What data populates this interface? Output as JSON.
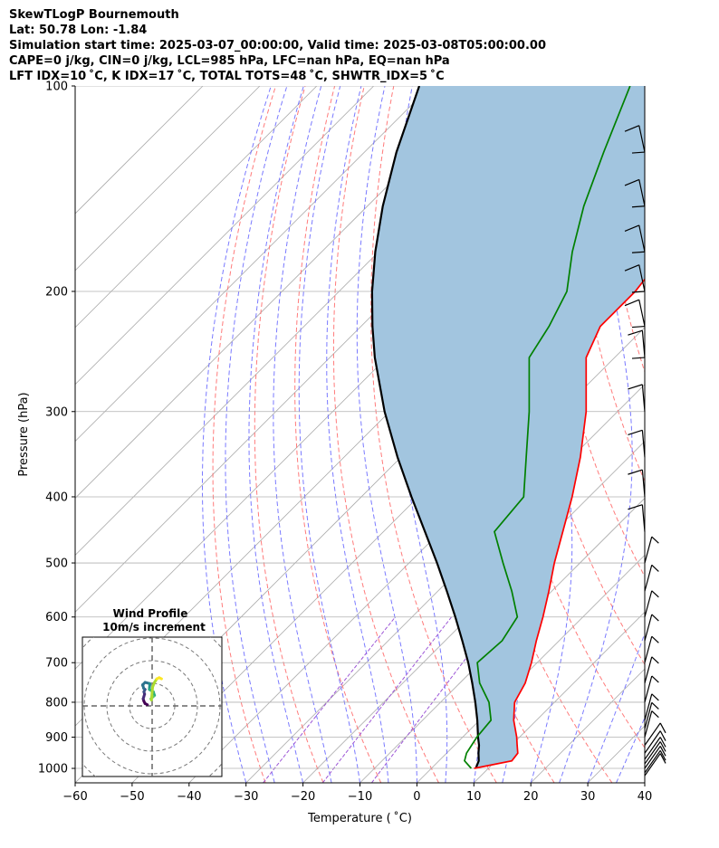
{
  "header": {
    "title": "SkewTLogP Bournemouth",
    "location": "Lat: 50.78   Lon: -1.84",
    "times": "Simulation start time: 2025-03-07_00:00:00, Valid time: 2025-03-08T05:00:00.00",
    "indices_1": "CAPE=0 j/kg, CIN=0 j/kg, LCL=985 hPa, LFC=nan hPa, EQ=nan hPa",
    "indices_2": "LFT IDX=10 ˚C, K IDX=17 ˚C, TOTAL TOTS=48 ˚C, SHWTR_IDX=5 ˚C"
  },
  "chart_data": {
    "type": "skew-t log-p",
    "xlabel": "Temperature ( ˚C)",
    "ylabel": "Pressure (hPa)",
    "xlim": [
      -60,
      40
    ],
    "ylim": [
      1050,
      100
    ],
    "x_ticks": [
      "−60",
      "−50",
      "−40",
      "−30",
      "−20",
      "−10",
      "0",
      "10",
      "20",
      "30",
      "40"
    ],
    "y_ticks": [
      "100",
      "200",
      "300",
      "400",
      "500",
      "600",
      "700",
      "800",
      "900",
      "1000"
    ],
    "pressure_levels_hpa": [
      1000,
      975,
      950,
      925,
      900,
      850,
      800,
      750,
      700,
      650,
      600,
      550,
      500,
      450,
      400,
      350,
      300,
      250,
      225,
      200,
      175,
      150,
      125,
      100
    ],
    "temperature_c": [
      7.5,
      12.8,
      12.5,
      11.0,
      9.5,
      6.0,
      3.0,
      1.5,
      -1.0,
      -4.0,
      -7.0,
      -10.5,
      -14.5,
      -18.5,
      -23.0,
      -28.5,
      -35.5,
      -45.0,
      -48.0,
      -48.0,
      -49.5,
      -53.5,
      -59.0,
      -67.0
    ],
    "dewpoint_c": [
      7.0,
      4.5,
      3.5,
      3.0,
      2.5,
      2.0,
      -1.5,
      -6.5,
      -10.5,
      -10.0,
      -11.5,
      -17.0,
      -23.5,
      -30.5,
      -31.5,
      -38.0,
      -45.5,
      -55.0,
      -57.0,
      -60.0,
      -66.0,
      -72.0,
      -78.0,
      -85.0
    ],
    "parcel_temperature_c": [
      7.8,
      7.0,
      5.6,
      4.3,
      2.7,
      -0.4,
      -3.9,
      -7.8,
      -12.1,
      -17.0,
      -22.4,
      -28.4,
      -35.1,
      -42.7,
      -51.2,
      -60.6,
      -70.9,
      -82.1,
      -88.0,
      -94.2,
      -100.6,
      -107.3,
      -114.4,
      -122.0
    ],
    "shaded_region": "between parcel and environment temperature",
    "wind_barbs_hpa": [
      1025,
      1015,
      1000,
      985,
      970,
      950,
      925,
      900,
      875,
      850,
      800,
      750,
      700,
      650,
      600,
      550,
      500,
      450,
      400,
      350,
      300,
      250,
      225,
      200,
      175,
      150,
      125
    ],
    "wind_profile_inset": {
      "title": "Wind Profile",
      "subtitle": "10m/s increment",
      "hodograph_u": [
        -2.0,
        -3.0,
        -3.5,
        -3.8,
        -3.5,
        -3.2,
        -3.5,
        -3.0,
        -3.6,
        -4.0,
        -3.0,
        -1.0,
        -1.0,
        -1.2,
        0.5,
        1.0,
        0.5,
        -0.5,
        -0.3,
        0.2,
        1.0,
        2.0,
        3.0,
        4.0
      ],
      "hodograph_v": [
        0.5,
        1.0,
        2.0,
        3.0,
        4.0,
        5.0,
        6.0,
        7.0,
        7.5,
        9.0,
        10.0,
        9.5,
        9.0,
        7.0,
        6.0,
        4.5,
        4.0,
        3.0,
        2.5,
        8.0,
        10.0,
        11.5,
        12.0,
        11.5
      ]
    },
    "colors": {
      "temperature": "#ff0000",
      "dewpoint": "#008000",
      "parcel": "#000000",
      "shading": "#a2c5df",
      "isotherms": "#aaaaaa",
      "dry_adiabats": "#ff6d6d",
      "moist_adiabats": "#6b6bff",
      "mixing_ratio": "#9c55d6"
    }
  }
}
